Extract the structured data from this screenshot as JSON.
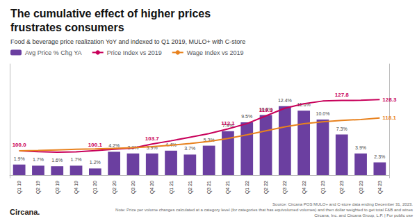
{
  "chart_data": {
    "type": "bar",
    "title": "The cumulative effect of higher prices\nfrustrates consumers",
    "subtitle": "Food & beverage price realization YoY and indexed to Q1 2019, MULO+ with C-store",
    "categories": [
      "Q1 19",
      "Q2 19",
      "Q3 19",
      "Q4 19",
      "Q1 20",
      "Q2 20",
      "Q3 20",
      "Q4 20",
      "Q1 21",
      "Q2 21",
      "Q3 21",
      "Q4 21",
      "Q1 22",
      "Q2 22",
      "Q3 22",
      "Q4 22",
      "Q1 23",
      "Q2 23",
      "Q3 23",
      "Q4 23"
    ],
    "series": [
      {
        "name": "Avg Price % Chg YA",
        "type": "bar",
        "color": "#6b3fa0",
        "values": [
          1.9,
          1.7,
          1.6,
          1.7,
          1.2,
          4.2,
          3.9,
          3.9,
          4.4,
          3.7,
          5.3,
          7.9,
          9.5,
          10.8,
          12.4,
          11.6,
          10.0,
          7.3,
          3.9,
          2.3
        ],
        "data_labels": true,
        "value_labels": [
          "1.9%",
          "1.7%",
          "1.6%",
          "1.7%",
          "1.2%",
          "4.2%",
          "3.9%",
          "3.9%",
          "4.4%",
          "3.7%",
          "5.3%",
          "7.9%",
          "9.5%",
          "10.8%",
          "12.4%",
          "11.6%",
          "10.0%",
          "7.3%",
          "3.9%",
          "2.3%"
        ]
      },
      {
        "name": "Price Index vs 2019",
        "type": "line",
        "axis": "y2",
        "color": "#c8005a",
        "values": [
          100.0,
          99.5,
          99.2,
          99.4,
          100.1,
          100.8,
          101.5,
          103.7,
          105.5,
          107.5,
          109.5,
          112.1,
          115.0,
          119.3,
          123.5,
          126.0,
          127.5,
          127.8,
          127.9,
          128.3
        ],
        "data_labels": true,
        "value_labels": [
          "100.0",
          null,
          null,
          null,
          "100.1",
          null,
          null,
          "103.7",
          null,
          null,
          null,
          "112.1",
          null,
          "119.3",
          null,
          null,
          null,
          "127.8",
          null,
          "128.3"
        ]
      },
      {
        "name": "Wage Index vs 2019",
        "type": "line",
        "axis": "y2",
        "color": "#e8821e",
        "values": [
          100.0,
          100.2,
          100.5,
          100.8,
          101.0,
          101.3,
          101.7,
          102.3,
          103.1,
          104.0,
          105.2,
          106.8,
          108.8,
          111.0,
          113.2,
          115.0,
          116.0,
          116.8,
          117.3,
          118.1
        ],
        "data_labels": true,
        "value_labels": [
          null,
          null,
          null,
          null,
          null,
          null,
          null,
          null,
          null,
          null,
          null,
          null,
          null,
          null,
          null,
          null,
          null,
          null,
          null,
          "118.1"
        ]
      }
    ],
    "ylim": [
      -0.5,
      20
    ],
    "y2lim": [
      85,
      148
    ],
    "tick_labels": "x",
    "grid": false,
    "legend": "upper left",
    "annotations": [
      "Source: Circana POS MULO+ and C-store data ending December 31, 2023.\nNote: Price per volume changes calculated at a category level (for categories that has equivolumed volumes) and then dollar weighted to get total F&B and wines\nCircana, Inc. and Circana Group, L.P. | For public use",
      "Circana."
    ]
  }
}
